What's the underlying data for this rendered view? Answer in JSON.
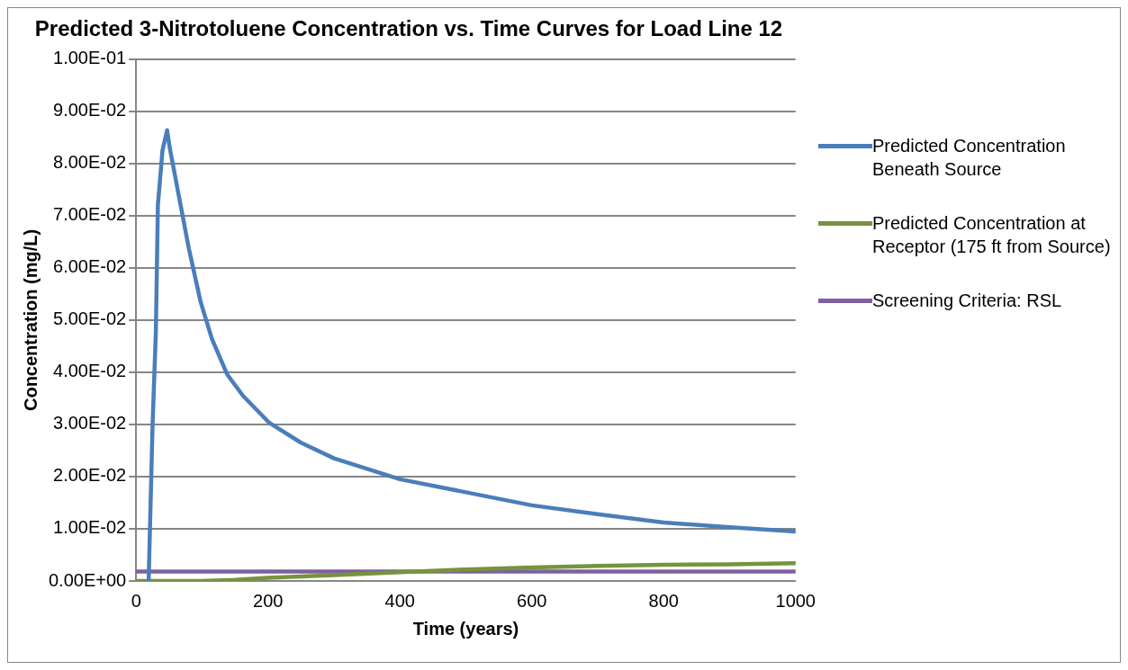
{
  "chart_data": {
    "type": "line",
    "title": "Predicted 3-Nitrotoluene Concentration vs. Time Curves for Load Line 12",
    "xlabel": "Time (years)",
    "ylabel": "Concentration (mg/L)",
    "xlim": [
      0,
      1000
    ],
    "xticks": [
      0,
      200,
      400,
      600,
      800,
      1000
    ],
    "ylim": [
      0,
      0.1
    ],
    "yticks": [
      {
        "value": 0,
        "label": "0.00E+00"
      },
      {
        "value": 0.01,
        "label": "1.00E-02"
      },
      {
        "value": 0.02,
        "label": "2.00E-02"
      },
      {
        "value": 0.03,
        "label": "3.00E-02"
      },
      {
        "value": 0.04,
        "label": "4.00E-02"
      },
      {
        "value": 0.05,
        "label": "5.00E-02"
      },
      {
        "value": 0.06,
        "label": "6.00E-02"
      },
      {
        "value": 0.07,
        "label": "7.00E-02"
      },
      {
        "value": 0.08,
        "label": "8.00E-02"
      },
      {
        "value": 0.09,
        "label": "9.00E-02"
      },
      {
        "value": 0.1,
        "label": "1.00E-01"
      }
    ],
    "grid": "y",
    "legend": "right",
    "marker": "none",
    "line_style": "solid",
    "series": [
      {
        "name": "Predicted Concentration Beneath Source",
        "color": "#4a7ebb",
        "x": [
          19,
          25,
          30,
          33,
          40,
          47,
          51,
          63,
          80,
          98,
          115,
          138,
          162,
          202,
          250,
          300,
          400,
          500,
          600,
          700,
          800,
          900,
          1000
        ],
        "values": [
          0,
          0.03,
          0.048,
          0.072,
          0.0825,
          0.0864,
          0.083,
          0.075,
          0.0637,
          0.0534,
          0.0464,
          0.0396,
          0.0355,
          0.0303,
          0.0265,
          0.0235,
          0.0195,
          0.017,
          0.0145,
          0.0128,
          0.0112,
          0.0103,
          0.0095
        ]
      },
      {
        "name": "Predicted Concentration at Receptor (175 ft from Source)",
        "color": "#77933c",
        "x": [
          0,
          100,
          150,
          200,
          300,
          400,
          500,
          600,
          700,
          800,
          900,
          1000
        ],
        "values": [
          0,
          0,
          0.0002,
          0.0006,
          0.0011,
          0.0017,
          0.0022,
          0.0026,
          0.0029,
          0.0031,
          0.0032,
          0.0034
        ]
      },
      {
        "name": "Screening Criteria:  RSL",
        "color": "#7f60a0",
        "x": [
          0,
          1000
        ],
        "values": [
          0.0018,
          0.0018
        ]
      }
    ]
  }
}
